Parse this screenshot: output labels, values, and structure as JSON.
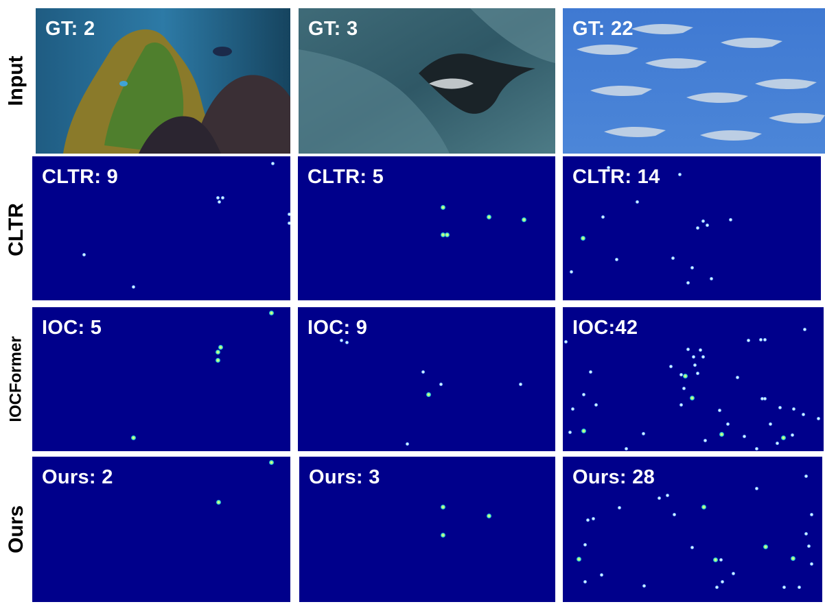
{
  "row_labels": [
    "Input",
    "CLTR",
    "IOCFormer",
    "Ours"
  ],
  "input_captions": [
    "GT: 2",
    "GT: 3",
    "GT: 22"
  ],
  "cltr_captions": [
    "CLTR: 9",
    "CLTR: 5",
    "CLTR: 14"
  ],
  "ioc_captions": [
    "IOC: 5",
    "IOC: 9",
    "IOC:42"
  ],
  "ours_captions": [
    "Ours: 2",
    "Ours: 3",
    "Ours: 28"
  ],
  "colors": {
    "density_bg": "#00008b",
    "caption": "#ffffff"
  }
}
